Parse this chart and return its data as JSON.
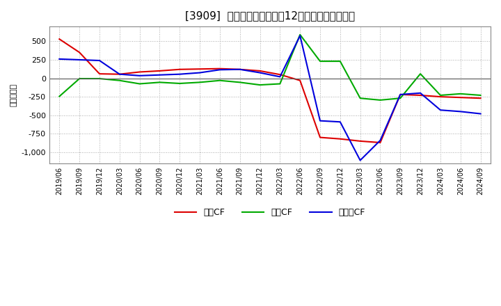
{
  "title": "[3909]  キャッシュフローの12か月移動合計の推移",
  "ylabel": "（百万円）",
  "ylim": [
    -1150,
    700
  ],
  "yticks": [
    -1000,
    -750,
    -500,
    -250,
    0,
    250,
    500
  ],
  "background_color": "#ffffff",
  "grid_color": "#aaaaaa",
  "dates": [
    "2019/06",
    "2019/09",
    "2019/12",
    "2020/03",
    "2020/06",
    "2020/09",
    "2020/12",
    "2021/03",
    "2021/06",
    "2021/09",
    "2021/12",
    "2022/03",
    "2022/06",
    "2022/09",
    "2022/12",
    "2023/03",
    "2023/06",
    "2023/09",
    "2023/12",
    "2024/03",
    "2024/06",
    "2024/09"
  ],
  "eigyo_cf": [
    530,
    350,
    60,
    55,
    85,
    100,
    120,
    125,
    130,
    120,
    100,
    50,
    -30,
    -800,
    -820,
    -850,
    -870,
    -220,
    -230,
    -250,
    -260,
    -270
  ],
  "toshi_cf": [
    -245,
    -5,
    -5,
    -30,
    -75,
    -55,
    -70,
    -55,
    -30,
    -55,
    -90,
    -75,
    590,
    230,
    230,
    -270,
    -295,
    -270,
    60,
    -230,
    -210,
    -230
  ],
  "free_cf": [
    260,
    250,
    240,
    55,
    35,
    45,
    55,
    75,
    115,
    120,
    75,
    20,
    575,
    -575,
    -590,
    -1110,
    -840,
    -220,
    -200,
    -430,
    -450,
    -480
  ],
  "line_colors": {
    "eigyo": "#dd0000",
    "toshi": "#00aa00",
    "free": "#0000dd"
  },
  "line_width": 1.5,
  "title_fontsize": 11
}
